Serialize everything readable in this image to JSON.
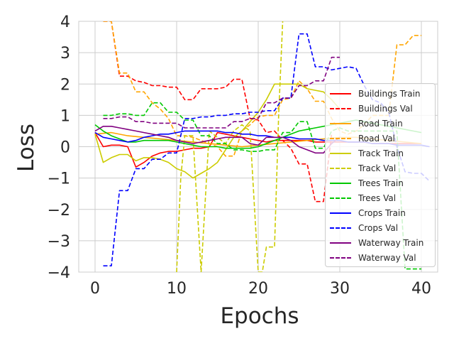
{
  "chart_data": {
    "type": "line",
    "title": "",
    "xlabel": "Epochs",
    "ylabel": "Loss",
    "xlim": [
      -2,
      42
    ],
    "ylim": [
      -4,
      4
    ],
    "xticks": [
      "0",
      "10",
      "20",
      "30",
      "40"
    ],
    "yticks": [
      "−4",
      "−3",
      "−2",
      "−1",
      "0",
      "1",
      "2",
      "3",
      "4"
    ],
    "grid": true,
    "legend_position": "lower-right",
    "series": [
      {
        "name": "Buildings Train",
        "color": "#ff0000",
        "style": "solid",
        "x": [
          0,
          1,
          2,
          3,
          4,
          5,
          6,
          7,
          8,
          9,
          10,
          11,
          12,
          13,
          14,
          15,
          16,
          17,
          18,
          19,
          20,
          21,
          22,
          23,
          24,
          25,
          26,
          27,
          28,
          29,
          30,
          31,
          32,
          33,
          34,
          35,
          36,
          37,
          38,
          39,
          40
        ],
        "y": [
          0.45,
          0.0,
          0.05,
          0.05,
          0.0,
          -0.65,
          -0.5,
          -0.3,
          -0.2,
          -0.15,
          -0.15,
          -0.1,
          -0.05,
          -0.05,
          0.0,
          0.45,
          0.4,
          0.35,
          0.3,
          0.25,
          0.2,
          0.15,
          0.2,
          0.2,
          0.2,
          0.2,
          0.2,
          0.15,
          0.15,
          0.15,
          0.15,
          0.15,
          0.15,
          0.15,
          0.1,
          0.1,
          0.1,
          0.1,
          0.1,
          0.1,
          0.1
        ]
      },
      {
        "name": "Buildings Val",
        "color": "#ff0000",
        "style": "dashed",
        "x": [
          1,
          2,
          3,
          4,
          5,
          6,
          7,
          8,
          9,
          10,
          11,
          12,
          13,
          14,
          15,
          16,
          17,
          18,
          19,
          20,
          21,
          22,
          23,
          24,
          25,
          26,
          27,
          28,
          29
        ],
        "y": [
          4.0,
          4.0,
          2.25,
          2.25,
          2.1,
          2.05,
          1.95,
          1.95,
          1.9,
          1.9,
          1.5,
          1.5,
          1.85,
          1.85,
          1.85,
          1.9,
          2.15,
          2.15,
          0.9,
          0.85,
          0.45,
          0.5,
          0.2,
          -0.05,
          -0.55,
          -0.55,
          -1.75,
          -1.75,
          0.4
        ]
      },
      {
        "name": "Road Train",
        "color": "#ffa500",
        "style": "solid",
        "x": [
          0,
          2,
          4,
          6,
          8,
          10,
          12,
          14,
          16,
          18,
          20,
          22,
          24,
          26,
          28,
          30,
          32,
          34,
          36,
          38,
          40
        ],
        "y": [
          0.4,
          0.45,
          0.35,
          0.3,
          0.25,
          0.2,
          0.15,
          0.1,
          0.05,
          0.0,
          0.05,
          0.1,
          0.15,
          0.2,
          0.25,
          0.3,
          0.3,
          0.25,
          0.2,
          0.15,
          0.1
        ]
      },
      {
        "name": "Road Val",
        "color": "#ffa500",
        "style": "dashed",
        "x": [
          1,
          2,
          3,
          4,
          5,
          6,
          7,
          8,
          9,
          10,
          11,
          12,
          13,
          14,
          15,
          16,
          17,
          18,
          19,
          20,
          21,
          22,
          23,
          24,
          25,
          26,
          27,
          28,
          29,
          30,
          31,
          32,
          33,
          34,
          35,
          36,
          37,
          38,
          39,
          40
        ],
        "y": [
          4.0,
          4.0,
          2.35,
          2.35,
          1.75,
          1.75,
          1.4,
          1.2,
          0.9,
          0.35,
          0.35,
          0.3,
          0.2,
          0.1,
          0.0,
          -0.3,
          -0.3,
          0.5,
          0.7,
          0.95,
          1.0,
          1.0,
          1.5,
          1.55,
          2.1,
          1.85,
          1.45,
          1.45,
          0.9,
          0.5,
          0.4,
          0.5,
          0.7,
          1.0,
          1.0,
          1.0,
          3.25,
          3.25,
          3.55,
          3.55
        ]
      },
      {
        "name": "Track Train",
        "color": "#cccc00",
        "style": "solid",
        "x": [
          0,
          1,
          2,
          3,
          4,
          5,
          6,
          7,
          8,
          9,
          10,
          11,
          12,
          13,
          14,
          15,
          16,
          17,
          18,
          19,
          20,
          21,
          22,
          23,
          24,
          25,
          26,
          27,
          28,
          29,
          30
        ],
        "y": [
          0.4,
          -0.5,
          -0.35,
          -0.25,
          -0.25,
          -0.45,
          -0.35,
          -0.35,
          -0.4,
          -0.5,
          -0.7,
          -0.8,
          -1.0,
          -0.85,
          -0.7,
          -0.5,
          -0.1,
          0.3,
          0.5,
          0.8,
          1.1,
          1.5,
          2.0,
          2.0,
          2.0,
          2.0,
          1.85,
          1.8,
          1.75,
          1.5,
          1.2
        ]
      },
      {
        "name": "Track Val",
        "color": "#cccc00",
        "style": "dashed",
        "x": [
          10,
          10.5,
          11,
          12,
          13,
          14,
          15,
          16,
          17,
          18,
          19,
          20,
          20.5,
          21,
          22,
          22.5,
          23
        ],
        "y": [
          -4.0,
          -1.0,
          0.35,
          0.35,
          -4.0,
          0.5,
          0.3,
          0.1,
          0.5,
          0.7,
          0.5,
          -4.0,
          -4.0,
          -3.2,
          -3.2,
          1.0,
          4.0
        ]
      },
      {
        "name": "Trees Train",
        "color": "#00c800",
        "style": "solid",
        "x": [
          0,
          1,
          2,
          3,
          4,
          5,
          6,
          7,
          8,
          9,
          10,
          11,
          12,
          13,
          14,
          15,
          16,
          17,
          18,
          19,
          20,
          21,
          22,
          23,
          24,
          25,
          26,
          27,
          28,
          29,
          30,
          31,
          32,
          33,
          34,
          35,
          36,
          37,
          38,
          39,
          40
        ],
        "y": [
          0.7,
          0.5,
          0.35,
          0.25,
          0.15,
          0.15,
          0.2,
          0.2,
          0.2,
          0.2,
          0.15,
          0.1,
          0.05,
          0.0,
          0.0,
          0.0,
          -0.05,
          -0.05,
          -0.05,
          -0.05,
          0.0,
          0.1,
          0.2,
          0.3,
          0.4,
          0.5,
          0.55,
          0.6,
          0.65,
          0.7,
          0.75,
          0.8,
          0.85,
          0.8,
          0.75,
          0.7,
          0.65,
          0.6,
          0.55,
          0.5,
          0.45
        ]
      },
      {
        "name": "Trees Val",
        "color": "#00c800",
        "style": "dashed",
        "x": [
          1,
          2,
          3,
          4,
          5,
          6,
          7,
          8,
          9,
          10,
          11,
          12,
          13,
          14,
          15,
          16,
          17,
          18,
          19,
          20,
          21,
          22,
          23,
          24,
          25,
          26,
          27,
          28,
          29,
          30,
          31,
          32,
          33,
          34,
          35,
          36,
          37,
          38,
          39,
          40
        ],
        "y": [
          1.0,
          1.0,
          1.05,
          1.05,
          1.0,
          1.0,
          1.4,
          1.4,
          1.1,
          1.1,
          0.85,
          0.85,
          0.35,
          0.35,
          0.1,
          0.1,
          -0.1,
          -0.1,
          -0.15,
          -0.15,
          -0.1,
          -0.1,
          0.45,
          0.45,
          0.8,
          0.8,
          -0.05,
          -0.05,
          0.5,
          0.6,
          0.5,
          0.5,
          0.5,
          0.5,
          0.5,
          0.5,
          0.5,
          -3.9,
          -3.9,
          -3.9
        ]
      },
      {
        "name": "Crops Train",
        "color": "#0000ff",
        "style": "solid",
        "x": [
          0,
          1,
          2,
          3,
          4,
          5,
          6,
          7,
          8,
          9,
          10,
          11,
          12,
          13,
          14,
          15,
          16,
          17,
          18,
          19,
          20,
          21,
          22,
          23,
          24,
          25,
          26,
          27,
          28,
          29,
          30,
          31,
          32,
          33,
          34,
          35,
          36,
          37,
          38,
          39,
          40,
          41
        ],
        "y": [
          0.45,
          0.3,
          0.25,
          0.2,
          0.15,
          0.2,
          0.3,
          0.35,
          0.4,
          0.4,
          0.45,
          0.5,
          0.5,
          0.5,
          0.5,
          0.5,
          0.45,
          0.45,
          0.4,
          0.4,
          0.35,
          0.35,
          0.3,
          0.3,
          0.3,
          0.25,
          0.25,
          0.25,
          0.2,
          0.2,
          0.2,
          0.15,
          0.15,
          0.15,
          0.1,
          0.1,
          0.1,
          0.05,
          0.05,
          0.05,
          0.05,
          0.0
        ]
      },
      {
        "name": "Crops Val",
        "color": "#0000ff",
        "style": "dashed",
        "x": [
          1,
          2,
          3,
          4,
          5,
          6,
          7,
          8,
          9,
          10,
          11,
          12,
          13,
          14,
          15,
          16,
          17,
          18,
          19,
          20,
          21,
          22,
          23,
          24,
          25,
          26,
          27,
          28,
          29,
          30,
          31,
          32,
          33,
          34,
          35,
          36,
          37,
          38,
          39,
          40,
          41
        ],
        "y": [
          -3.8,
          -3.8,
          -1.4,
          -1.4,
          -0.7,
          -0.7,
          -0.4,
          -0.4,
          -0.2,
          -0.2,
          0.9,
          0.9,
          0.95,
          0.95,
          1.0,
          1.0,
          1.05,
          1.05,
          1.1,
          1.1,
          1.15,
          1.15,
          1.55,
          1.55,
          3.6,
          3.6,
          2.55,
          2.55,
          2.45,
          2.5,
          2.55,
          2.5,
          1.95,
          1.5,
          1.4,
          1.1,
          0.0,
          -0.8,
          -0.85,
          -0.85,
          -1.1
        ]
      },
      {
        "name": "Waterway Train",
        "color": "#800080",
        "style": "solid",
        "x": [
          0,
          1,
          2,
          3,
          4,
          5,
          6,
          7,
          8,
          9,
          10,
          11,
          12,
          13,
          14,
          15,
          16,
          17,
          18,
          19,
          20,
          21,
          22,
          23,
          24,
          25,
          26,
          27,
          28,
          29,
          30
        ],
        "y": [
          0.5,
          0.65,
          0.65,
          0.6,
          0.55,
          0.5,
          0.45,
          0.4,
          0.35,
          0.3,
          0.2,
          0.15,
          0.1,
          0.15,
          0.2,
          0.25,
          0.3,
          0.3,
          0.3,
          0.1,
          0.05,
          0.3,
          0.3,
          0.3,
          0.2,
          0.0,
          -0.1,
          -0.2,
          -0.2,
          0.1,
          0.3
        ]
      },
      {
        "name": "Waterway Val",
        "color": "#800080",
        "style": "dashed",
        "x": [
          1,
          2,
          3,
          4,
          5,
          6,
          7,
          8,
          9,
          10,
          11,
          12,
          13,
          14,
          15,
          16,
          17,
          18,
          19,
          20,
          21,
          22,
          23,
          24,
          25,
          26,
          27,
          28,
          29,
          30
        ],
        "y": [
          0.9,
          0.9,
          0.95,
          0.95,
          0.8,
          0.8,
          0.75,
          0.75,
          0.75,
          0.75,
          0.6,
          0.6,
          0.6,
          0.6,
          0.6,
          0.6,
          0.8,
          0.8,
          0.9,
          0.9,
          1.4,
          1.4,
          1.55,
          1.55,
          1.95,
          1.95,
          2.1,
          2.1,
          2.85,
          2.85
        ]
      }
    ]
  }
}
